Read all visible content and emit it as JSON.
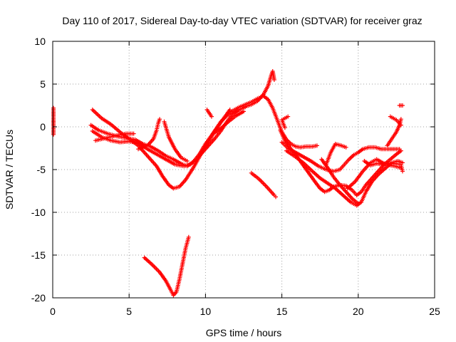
{
  "chart_data": {
    "type": "scatter",
    "title": "Day 110 of 2017, Sidereal Day-to-day VTEC variation (SDTVAR) for receiver graz",
    "xlabel": "GPS time / hours",
    "ylabel": "SDTVAR / TECUs",
    "xlim": [
      0,
      25
    ],
    "ylim": [
      -20,
      10
    ],
    "xticks": [
      "0",
      "5",
      "10",
      "15",
      "20",
      "25"
    ],
    "yticks": [
      "-20",
      "-15",
      "-10",
      "-5",
      "0",
      "5",
      "10"
    ],
    "grid": true,
    "marker": "plus",
    "color": "#ff0000",
    "segments": [
      [
        [
          0.05,
          2.2
        ],
        [
          0.05,
          1.5
        ],
        [
          0.05,
          0.8
        ],
        [
          0.05,
          0.3
        ],
        [
          0.05,
          -0.9
        ]
      ],
      [
        [
          2.6,
          2.0
        ],
        [
          3.2,
          1.0
        ],
        [
          3.8,
          0.3
        ],
        [
          4.2,
          -0.3
        ],
        [
          4.6,
          -0.9
        ],
        [
          5.0,
          -1.4
        ],
        [
          5.6,
          -2.2
        ],
        [
          6.2,
          -3.4
        ],
        [
          6.8,
          -4.6
        ],
        [
          7.2,
          -5.8
        ],
        [
          7.6,
          -6.8
        ],
        [
          7.9,
          -7.2
        ],
        [
          8.3,
          -7.0
        ],
        [
          8.7,
          -6.2
        ],
        [
          9.2,
          -4.8
        ],
        [
          9.7,
          -3.2
        ],
        [
          10.2,
          -1.8
        ],
        [
          10.6,
          -0.5
        ],
        [
          11.0,
          0.6
        ],
        [
          11.4,
          1.3
        ],
        [
          11.8,
          1.9
        ],
        [
          12.2,
          2.3
        ],
        [
          12.6,
          2.6
        ],
        [
          13.0,
          2.9
        ],
        [
          13.4,
          3.3
        ],
        [
          13.8,
          3.6
        ],
        [
          14.1,
          3.2
        ],
        [
          14.4,
          2.2
        ],
        [
          14.7,
          0.8
        ],
        [
          15.0,
          -0.6
        ],
        [
          15.3,
          -1.5
        ],
        [
          15.6,
          -2.0
        ],
        [
          15.9,
          -2.3
        ],
        [
          16.2,
          -2.4
        ],
        [
          16.6,
          -2.3
        ],
        [
          17.0,
          -2.3
        ],
        [
          17.3,
          -2.2
        ]
      ],
      [
        [
          2.5,
          0.2
        ],
        [
          3.0,
          -0.4
        ],
        [
          3.6,
          -0.8
        ],
        [
          4.2,
          -1.1
        ],
        [
          4.8,
          -1.3
        ],
        [
          5.4,
          -1.5
        ],
        [
          5.9,
          -2.0
        ],
        [
          6.4,
          -2.3
        ],
        [
          6.9,
          -2.8
        ],
        [
          7.4,
          -3.4
        ],
        [
          7.9,
          -3.8
        ],
        [
          8.4,
          -4.3
        ],
        [
          8.8,
          -4.6
        ],
        [
          9.2,
          -4.1
        ],
        [
          9.6,
          -3.2
        ],
        [
          10.0,
          -2.0
        ],
        [
          10.4,
          -1.0
        ],
        [
          10.8,
          0.0
        ],
        [
          11.2,
          1.0
        ],
        [
          11.6,
          2.0
        ]
      ],
      [
        [
          2.6,
          -0.5
        ],
        [
          3.2,
          -1.2
        ],
        [
          3.8,
          -1.6
        ],
        [
          4.4,
          -1.8
        ],
        [
          5.0,
          -1.7
        ],
        [
          5.6,
          -1.9
        ],
        [
          6.2,
          -2.6
        ],
        [
          6.8,
          -3.2
        ],
        [
          7.4,
          -3.8
        ],
        [
          8.0,
          -4.4
        ],
        [
          8.6,
          -4.6
        ],
        [
          9.0,
          -4.4
        ],
        [
          9.4,
          -3.8
        ],
        [
          9.8,
          -3.0
        ],
        [
          10.2,
          -2.2
        ],
        [
          10.6,
          -1.4
        ],
        [
          11.0,
          -0.5
        ],
        [
          11.4,
          0.6
        ],
        [
          11.8,
          1.5
        ],
        [
          12.2,
          2.0
        ],
        [
          12.6,
          2.3
        ]
      ],
      [
        [
          2.8,
          -1.6
        ],
        [
          3.5,
          -1.3
        ],
        [
          4.2,
          -1.0
        ],
        [
          4.8,
          -0.8
        ],
        [
          5.3,
          -0.8
        ]
      ],
      [
        [
          5.6,
          -2.6
        ],
        [
          6.2,
          -2.2
        ],
        [
          6.6,
          -1.4
        ],
        [
          6.8,
          -0.4
        ],
        [
          6.9,
          0.4
        ],
        [
          7.0,
          0.9
        ]
      ],
      [
        [
          7.3,
          0.6
        ],
        [
          7.6,
          -1.2
        ],
        [
          8.0,
          -2.6
        ],
        [
          8.4,
          -3.6
        ],
        [
          8.8,
          -4.0
        ]
      ],
      [
        [
          6.0,
          -15.3
        ],
        [
          6.5,
          -16.1
        ],
        [
          7.0,
          -17.0
        ],
        [
          7.4,
          -18.0
        ],
        [
          7.7,
          -19.0
        ],
        [
          7.9,
          -19.7
        ],
        [
          8.1,
          -19.3
        ],
        [
          8.3,
          -17.8
        ],
        [
          8.5,
          -16.0
        ],
        [
          8.7,
          -14.2
        ],
        [
          8.9,
          -12.9
        ]
      ],
      [
        [
          10.1,
          2.0
        ],
        [
          10.4,
          1.2
        ]
      ],
      [
        [
          10.5,
          -0.8
        ],
        [
          11.0,
          -0.2
        ],
        [
          11.5,
          0.6
        ],
        [
          12.0,
          1.3
        ],
        [
          12.5,
          1.8
        ]
      ],
      [
        [
          12.5,
          2.3
        ],
        [
          13.0,
          2.6
        ],
        [
          13.4,
          3.0
        ],
        [
          13.8,
          3.8
        ],
        [
          14.1,
          4.8
        ],
        [
          14.3,
          6.0
        ],
        [
          14.4,
          6.5
        ],
        [
          14.5,
          5.5
        ]
      ],
      [
        [
          13.0,
          -5.4
        ],
        [
          13.5,
          -6.1
        ],
        [
          14.0,
          -7.0
        ],
        [
          14.5,
          -8.0
        ],
        [
          14.6,
          -8.2
        ]
      ],
      [
        [
          14.9,
          -0.4
        ],
        [
          15.2,
          -1.6
        ],
        [
          15.6,
          -2.6
        ],
        [
          16.0,
          -3.5
        ],
        [
          16.4,
          -4.5
        ],
        [
          16.8,
          -5.5
        ],
        [
          17.2,
          -6.5
        ],
        [
          17.5,
          -7.2
        ],
        [
          17.8,
          -7.6
        ],
        [
          18.1,
          -7.4
        ],
        [
          18.4,
          -7.0
        ],
        [
          18.8,
          -6.8
        ],
        [
          19.2,
          -6.9
        ],
        [
          19.6,
          -7.4
        ],
        [
          19.9,
          -8.0
        ],
        [
          20.2,
          -7.6
        ],
        [
          20.5,
          -6.8
        ],
        [
          20.9,
          -6.0
        ],
        [
          21.3,
          -5.2
        ],
        [
          21.7,
          -4.4
        ],
        [
          22.1,
          -3.8
        ],
        [
          22.5,
          -3.2
        ],
        [
          22.8,
          -2.8
        ]
      ],
      [
        [
          15.0,
          -1.8
        ],
        [
          15.4,
          -2.5
        ],
        [
          15.9,
          -3.0
        ],
        [
          16.4,
          -3.5
        ],
        [
          16.9,
          -4.0
        ],
        [
          17.4,
          -4.6
        ],
        [
          17.9,
          -5.0
        ],
        [
          18.4,
          -5.2
        ],
        [
          18.8,
          -5.0
        ],
        [
          19.1,
          -4.4
        ],
        [
          19.4,
          -3.8
        ],
        [
          19.7,
          -3.3
        ],
        [
          20.0,
          -3.0
        ],
        [
          20.3,
          -2.6
        ],
        [
          20.7,
          -2.4
        ],
        [
          21.1,
          -2.4
        ],
        [
          21.5,
          -2.6
        ],
        [
          21.9,
          -2.6
        ],
        [
          22.3,
          -2.6
        ],
        [
          22.7,
          -2.6
        ]
      ],
      [
        [
          15.3,
          -2.8
        ],
        [
          15.8,
          -3.4
        ],
        [
          16.4,
          -4.2
        ],
        [
          17.0,
          -5.2
        ],
        [
          17.5,
          -6.0
        ],
        [
          18.0,
          -6.6
        ],
        [
          18.5,
          -7.2
        ],
        [
          19.0,
          -8.0
        ],
        [
          19.5,
          -8.8
        ],
        [
          19.9,
          -9.2
        ],
        [
          20.2,
          -8.8
        ],
        [
          20.5,
          -7.6
        ],
        [
          20.9,
          -6.4
        ],
        [
          21.3,
          -5.6
        ],
        [
          21.8,
          -4.8
        ],
        [
          22.2,
          -4.2
        ],
        [
          22.6,
          -4.0
        ],
        [
          22.9,
          -4.2
        ]
      ],
      [
        [
          15.4,
          1.2
        ],
        [
          15.0,
          0.8
        ],
        [
          15.2,
          -0.1
        ]
      ],
      [
        [
          17.6,
          -3.8
        ],
        [
          18.0,
          -4.8
        ],
        [
          18.4,
          -5.9
        ],
        [
          18.8,
          -6.8
        ],
        [
          19.2,
          -7.6
        ],
        [
          19.6,
          -8.4
        ],
        [
          20.0,
          -9.0
        ]
      ],
      [
        [
          17.9,
          -4.4
        ],
        [
          18.2,
          -3.0
        ],
        [
          18.5,
          -2.0
        ],
        [
          18.9,
          -2.2
        ],
        [
          19.2,
          -2.4
        ]
      ],
      [
        [
          19.3,
          -7.2
        ],
        [
          19.8,
          -6.4
        ],
        [
          20.3,
          -5.2
        ],
        [
          20.8,
          -4.2
        ],
        [
          21.2,
          -3.8
        ],
        [
          21.8,
          -4.4
        ],
        [
          22.4,
          -4.6
        ],
        [
          22.8,
          -4.8
        ]
      ],
      [
        [
          21.9,
          -2.2
        ],
        [
          22.2,
          -1.4
        ],
        [
          22.5,
          -0.6
        ],
        [
          22.7,
          0.2
        ],
        [
          22.8,
          0.9
        ]
      ],
      [
        [
          22.1,
          1.2
        ],
        [
          22.5,
          0.8
        ],
        [
          22.8,
          0.2
        ]
      ],
      [
        [
          22.7,
          2.5
        ],
        [
          22.9,
          2.5
        ]
      ],
      [
        [
          20.4,
          -4.0
        ],
        [
          20.8,
          -4.5
        ],
        [
          21.2,
          -4.3
        ],
        [
          21.6,
          -4.4
        ],
        [
          22.0,
          -4.3
        ],
        [
          22.4,
          -4.3
        ],
        [
          22.8,
          -4.4
        ],
        [
          22.9,
          -5.2
        ]
      ]
    ]
  }
}
